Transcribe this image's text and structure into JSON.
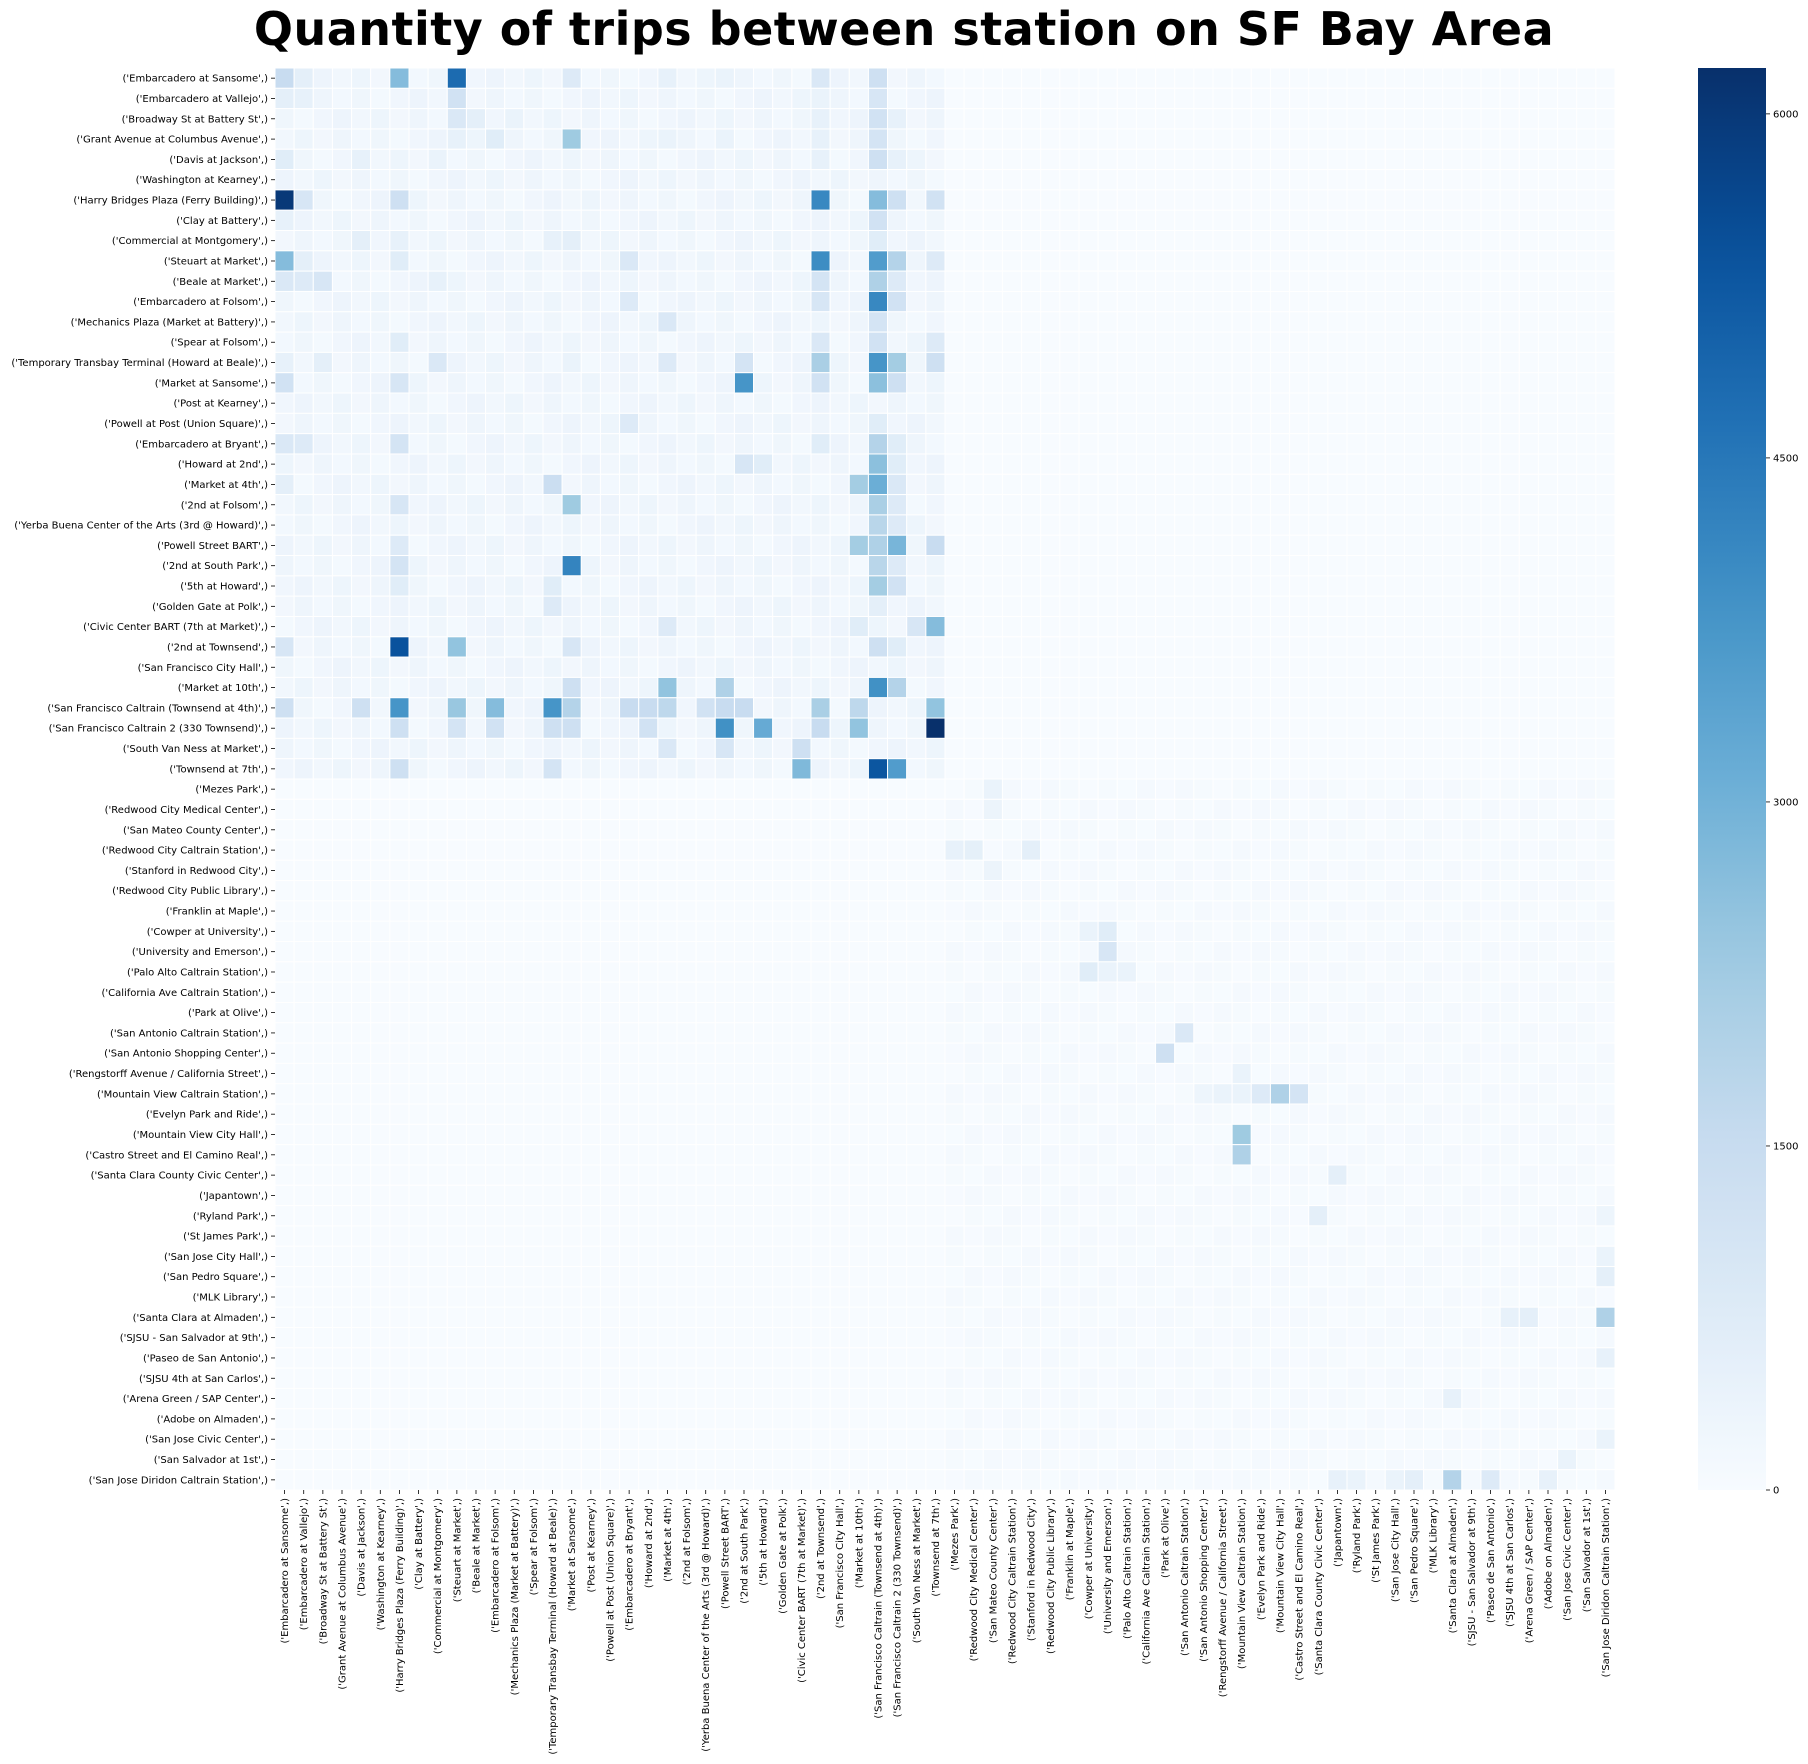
{
  "chart_data": {
    "type": "heatmap",
    "title": "Quantity of trips between station on SF Bay Area",
    "xlabel": "",
    "ylabel": "",
    "colormap": "Blues",
    "color_low": "#f7fbff",
    "color_high": "#08306b",
    "color_range": [
      0,
      6200
    ],
    "colorbar_ticks": [
      "0",
      "1500",
      "3000",
      "4500",
      "6000"
    ],
    "colorbar_tick_values": [
      0,
      1500,
      3000,
      4500,
      6000
    ],
    "row_labels": [
      "('Embarcadero at Sansome',)",
      "('Embarcadero at Vallejo',)",
      "('Broadway St at Battery St',)",
      "('Grant Avenue at Columbus Avenue',)",
      "('Davis at Jackson',)",
      "('Washington at Kearney',)",
      "('Harry Bridges Plaza (Ferry Building)',)",
      "('Clay at Battery',)",
      "('Commercial at Montgomery',)",
      "('Steuart at Market',)",
      "('Beale at Market',)",
      "('Embarcadero at Folsom',)",
      "('Mechanics Plaza (Market at Battery)',)",
      "('Spear at Folsom',)",
      "('Temporary Transbay Terminal (Howard at Beale)',)",
      "('Market at Sansome',)",
      "('Post at Kearney',)",
      "('Powell at Post (Union Square)',)",
      "('Embarcadero at Bryant',)",
      "('Howard at 2nd',)",
      "('Market at 4th',)",
      "('2nd at Folsom',)",
      "('Yerba Buena Center of the Arts (3rd @ Howard)',)",
      "('Powell Street BART',)",
      "('2nd at South Park',)",
      "('5th at Howard',)",
      "('Golden Gate at Polk',)",
      "('Civic Center BART (7th at Market)',)",
      "('2nd at Townsend',)",
      "('San Francisco City Hall',)",
      "('Market at 10th',)",
      "('San Francisco Caltrain (Townsend at 4th)',)",
      "('San Francisco Caltrain 2 (330 Townsend)',)",
      "('South Van Ness at Market',)",
      "('Townsend at 7th',)",
      "('Mezes Park',)",
      "('Redwood City Medical Center',)",
      "('San Mateo County Center',)",
      "('Redwood City Caltrain Station',)",
      "('Stanford in Redwood City',)",
      "('Redwood City Public Library',)",
      "('Franklin at Maple',)",
      "('Cowper at University',)",
      "('University and Emerson',)",
      "('Palo Alto Caltrain Station',)",
      "('California Ave Caltrain Station',)",
      "('Park at Olive',)",
      "('San Antonio Caltrain Station',)",
      "('San Antonio Shopping Center',)",
      "('Rengstorff Avenue / California Street',)",
      "('Mountain View Caltrain Station',)",
      "('Evelyn Park and Ride',)",
      "('Mountain View City Hall',)",
      "('Castro Street and El Camino Real',)",
      "('Santa Clara County Civic Center',)",
      "('Japantown',)",
      "('Ryland Park',)",
      "('St James Park',)",
      "('San Jose City Hall',)",
      "('San Pedro Square',)",
      "('MLK Library',)",
      "('Santa Clara at Almaden',)",
      "('SJSU - San Salvador at 9th',)",
      "('Paseo de San Antonio',)",
      "('SJSU 4th at San Carlos',)",
      "('Arena Green / SAP Center',)",
      "('Adobe on Almaden',)",
      "('San Jose Civic Center',)",
      "('San Salvador at 1st',)",
      "('San Jose Diridon Caltrain Station',)"
    ],
    "col_labels": [
      "('Embarcadero at Sansome',)",
      "('Embarcadero at Vallejo',)",
      "('Broadway St at Battery St',)",
      "('Grant Avenue at Columbus Avenue',)",
      "('Davis at Jackson',)",
      "('Washington at Kearney',)",
      "('Harry Bridges Plaza (Ferry Building)',)",
      "('Clay at Battery',)",
      "('Commercial at Montgomery',)",
      "('Steuart at Market',)",
      "('Beale at Market',)",
      "('Embarcadero at Folsom',)",
      "('Mechanics Plaza (Market at Battery)',)",
      "('Spear at Folsom',)",
      "('Temporary Transbay Terminal (Howard at Beale)',)",
      "('Market at Sansome',)",
      "('Post at Kearney',)",
      "('Powell at Post (Union Square)',)",
      "('Embarcadero at Bryant',)",
      "('Howard at 2nd',)",
      "('Market at 4th',)",
      "('2nd at Folsom',)",
      "('Yerba Buena Center of the Arts (3rd @ Howard)',)",
      "('Powell Street BART',)",
      "('2nd at South Park',)",
      "('5th at Howard',)",
      "('Golden Gate at Polk',)",
      "('Civic Center BART (7th at Market)',)",
      "('2nd at Townsend',)",
      "('San Francisco City Hall',)",
      "('Market at 10th',)",
      "('San Francisco Caltrain (Townsend at 4th)',)",
      "('San Francisco Caltrain 2 (330 Townsend)',)",
      "('South Van Ness at Market',)",
      "('Townsend at 7th',)",
      "('Mezes Park',)",
      "('Redwood City Medical Center',)",
      "('San Mateo County Center',)",
      "('Redwood City Caltrain Station',)",
      "('Stanford in Redwood City',)",
      "('Redwood City Public Library',)",
      "('Franklin at Maple',)",
      "('Cowper at University',)",
      "('University and Emerson',)",
      "('Palo Alto Caltrain Station',)",
      "('California Ave Caltrain Station',)",
      "('Park at Olive',)",
      "('San Antonio Caltrain Station',)",
      "('San Antonio Shopping Center',)",
      "('Rengstorff Avenue / California Street',)",
      "('Mountain View Caltrain Station',)",
      "('Evelyn Park and Ride',)",
      "('Mountain View City Hall',)",
      "('Castro Street and El Camino Real',)",
      "('Santa Clara County Civic Center',)",
      "('Japantown',)",
      "('Ryland Park',)",
      "('St James Park',)",
      "('San Jose City Hall',)",
      "('San Pedro Square',)",
      "('MLK Library',)",
      "('Santa Clara at Almaden',)",
      "('SJSU - San Salvador at 9th',)",
      "('Paseo de San Antonio',)",
      "('SJSU 4th at San Carlos',)",
      "('Arena Green / SAP Center',)",
      "('Adobe on Almaden',)",
      "('San Jose Civic Center',)",
      "('San Salvador at 1st',)",
      "('San Jose Diridon Caltrain Station',)"
    ],
    "sparse_values": [
      [
        0,
        0,
        1500
      ],
      [
        0,
        1,
        600
      ],
      [
        0,
        6,
        2700
      ],
      [
        0,
        9,
        4800
      ],
      [
        0,
        15,
        800
      ],
      [
        0,
        20,
        500
      ],
      [
        0,
        23,
        400
      ],
      [
        0,
        28,
        900
      ],
      [
        0,
        31,
        1300
      ],
      [
        1,
        0,
        600
      ],
      [
        1,
        1,
        500
      ],
      [
        1,
        9,
        1200
      ],
      [
        1,
        28,
        400
      ],
      [
        1,
        31,
        1000
      ],
      [
        2,
        9,
        900
      ],
      [
        2,
        10,
        600
      ],
      [
        2,
        12,
        400
      ],
      [
        2,
        28,
        500
      ],
      [
        2,
        31,
        1200
      ],
      [
        2,
        32,
        500
      ],
      [
        3,
        9,
        500
      ],
      [
        3,
        11,
        700
      ],
      [
        3,
        15,
        2300
      ],
      [
        3,
        20,
        400
      ],
      [
        3,
        23,
        400
      ],
      [
        3,
        28,
        500
      ],
      [
        3,
        31,
        1100
      ],
      [
        4,
        0,
        700
      ],
      [
        4,
        4,
        500
      ],
      [
        4,
        8,
        400
      ],
      [
        4,
        28,
        500
      ],
      [
        4,
        31,
        1300
      ],
      [
        4,
        32,
        500
      ],
      [
        6,
        0,
        6000
      ],
      [
        6,
        1,
        1000
      ],
      [
        6,
        6,
        1300
      ],
      [
        6,
        28,
        4100
      ],
      [
        6,
        31,
        2700
      ],
      [
        6,
        32,
        1300
      ],
      [
        6,
        34,
        1200
      ],
      [
        7,
        0,
        500
      ],
      [
        7,
        31,
        1200
      ],
      [
        8,
        4,
        600
      ],
      [
        8,
        6,
        500
      ],
      [
        8,
        14,
        500
      ],
      [
        8,
        15,
        600
      ],
      [
        8,
        31,
        700
      ],
      [
        9,
        0,
        2700
      ],
      [
        9,
        1,
        600
      ],
      [
        9,
        6,
        700
      ],
      [
        9,
        18,
        900
      ],
      [
        9,
        28,
        4000
      ],
      [
        9,
        31,
        3600
      ],
      [
        9,
        32,
        1900
      ],
      [
        9,
        34,
        800
      ],
      [
        10,
        0,
        900
      ],
      [
        10,
        1,
        800
      ],
      [
        10,
        2,
        1000
      ],
      [
        10,
        8,
        500
      ],
      [
        10,
        28,
        1100
      ],
      [
        10,
        31,
        2000
      ],
      [
        10,
        32,
        800
      ],
      [
        11,
        18,
        800
      ],
      [
        11,
        28,
        1000
      ],
      [
        11,
        31,
        4100
      ],
      [
        11,
        32,
        1200
      ],
      [
        12,
        20,
        900
      ],
      [
        12,
        31,
        1100
      ],
      [
        13,
        6,
        700
      ],
      [
        13,
        28,
        900
      ],
      [
        13,
        31,
        1200
      ],
      [
        13,
        34,
        800
      ],
      [
        14,
        0,
        500
      ],
      [
        14,
        2,
        600
      ],
      [
        14,
        8,
        900
      ],
      [
        14,
        15,
        400
      ],
      [
        14,
        20,
        800
      ],
      [
        14,
        24,
        1100
      ],
      [
        14,
        28,
        2100
      ],
      [
        14,
        31,
        3800
      ],
      [
        14,
        32,
        2200
      ],
      [
        14,
        34,
        1300
      ],
      [
        15,
        0,
        1200
      ],
      [
        15,
        6,
        1000
      ],
      [
        15,
        24,
        3800
      ],
      [
        15,
        28,
        1200
      ],
      [
        15,
        31,
        2600
      ],
      [
        15,
        32,
        1300
      ],
      [
        17,
        18,
        800
      ],
      [
        17,
        31,
        700
      ],
      [
        18,
        0,
        900
      ],
      [
        18,
        1,
        800
      ],
      [
        18,
        6,
        1100
      ],
      [
        18,
        28,
        700
      ],
      [
        18,
        31,
        1900
      ],
      [
        18,
        32,
        700
      ],
      [
        19,
        24,
        1000
      ],
      [
        19,
        25,
        700
      ],
      [
        19,
        31,
        2600
      ],
      [
        19,
        32,
        700
      ],
      [
        20,
        0,
        600
      ],
      [
        20,
        14,
        1400
      ],
      [
        20,
        30,
        2200
      ],
      [
        20,
        31,
        3100
      ],
      [
        20,
        32,
        900
      ],
      [
        21,
        6,
        1000
      ],
      [
        21,
        15,
        2300
      ],
      [
        21,
        31,
        2100
      ],
      [
        21,
        32,
        800
      ],
      [
        22,
        31,
        1800
      ],
      [
        22,
        32,
        800
      ],
      [
        23,
        6,
        800
      ],
      [
        23,
        30,
        2200
      ],
      [
        23,
        31,
        2000
      ],
      [
        23,
        32,
        2900
      ],
      [
        23,
        34,
        1500
      ],
      [
        24,
        6,
        1100
      ],
      [
        24,
        15,
        4200
      ],
      [
        24,
        31,
        1800
      ],
      [
        24,
        32,
        800
      ],
      [
        25,
        6,
        700
      ],
      [
        25,
        14,
        700
      ],
      [
        25,
        31,
        2200
      ],
      [
        25,
        32,
        1200
      ],
      [
        26,
        14,
        800
      ],
      [
        26,
        31,
        600
      ],
      [
        27,
        20,
        800
      ],
      [
        27,
        30,
        700
      ],
      [
        27,
        33,
        1000
      ],
      [
        27,
        34,
        2700
      ],
      [
        28,
        0,
        1000
      ],
      [
        28,
        6,
        5400
      ],
      [
        28,
        9,
        2500
      ],
      [
        28,
        15,
        1000
      ],
      [
        28,
        31,
        1300
      ],
      [
        28,
        32,
        700
      ],
      [
        30,
        15,
        1300
      ],
      [
        30,
        20,
        2500
      ],
      [
        30,
        23,
        2000
      ],
      [
        30,
        31,
        3900
      ],
      [
        30,
        32,
        1900
      ],
      [
        31,
        0,
        1300
      ],
      [
        31,
        4,
        1300
      ],
      [
        31,
        6,
        3800
      ],
      [
        31,
        9,
        2400
      ],
      [
        31,
        11,
        2700
      ],
      [
        31,
        14,
        3800
      ],
      [
        31,
        15,
        1900
      ],
      [
        31,
        18,
        1500
      ],
      [
        31,
        19,
        1500
      ],
      [
        31,
        20,
        1700
      ],
      [
        31,
        22,
        1200
      ],
      [
        31,
        23,
        1500
      ],
      [
        31,
        24,
        1500
      ],
      [
        31,
        28,
        2100
      ],
      [
        31,
        30,
        1700
      ],
      [
        31,
        34,
        2500
      ],
      [
        32,
        6,
        1300
      ],
      [
        32,
        9,
        1100
      ],
      [
        32,
        11,
        1200
      ],
      [
        32,
        14,
        1300
      ],
      [
        32,
        15,
        1300
      ],
      [
        32,
        19,
        1200
      ],
      [
        32,
        23,
        3900
      ],
      [
        32,
        25,
        3200
      ],
      [
        32,
        28,
        1500
      ],
      [
        32,
        30,
        2500
      ],
      [
        32,
        34,
        6200
      ],
      [
        33,
        20,
        900
      ],
      [
        33,
        23,
        1000
      ],
      [
        33,
        27,
        1300
      ],
      [
        34,
        6,
        1300
      ],
      [
        34,
        14,
        1100
      ],
      [
        34,
        27,
        2800
      ],
      [
        34,
        31,
        5300
      ],
      [
        34,
        32,
        3600
      ],
      [
        35,
        37,
        400
      ],
      [
        36,
        37,
        350
      ],
      [
        38,
        35,
        500
      ],
      [
        38,
        36,
        550
      ],
      [
        38,
        39,
        600
      ],
      [
        39,
        37,
        350
      ],
      [
        42,
        42,
        400
      ],
      [
        42,
        43,
        700
      ],
      [
        43,
        43,
        1000
      ],
      [
        44,
        42,
        700
      ],
      [
        44,
        43,
        400
      ],
      [
        44,
        44,
        400
      ],
      [
        47,
        47,
        900
      ],
      [
        48,
        46,
        1300
      ],
      [
        49,
        50,
        400
      ],
      [
        50,
        48,
        300
      ],
      [
        50,
        49,
        400
      ],
      [
        50,
        50,
        400
      ],
      [
        50,
        51,
        800
      ],
      [
        50,
        52,
        2000
      ],
      [
        50,
        53,
        1100
      ],
      [
        52,
        50,
        2300
      ],
      [
        53,
        50,
        2000
      ],
      [
        54,
        55,
        600
      ],
      [
        56,
        54,
        600
      ],
      [
        56,
        69,
        300
      ],
      [
        58,
        69,
        400
      ],
      [
        59,
        69,
        600
      ],
      [
        61,
        64,
        500
      ],
      [
        61,
        65,
        600
      ],
      [
        61,
        69,
        2000
      ],
      [
        63,
        69,
        500
      ],
      [
        65,
        61,
        500
      ],
      [
        67,
        69,
        400
      ],
      [
        68,
        67,
        400
      ],
      [
        69,
        55,
        500
      ],
      [
        69,
        56,
        400
      ],
      [
        69,
        58,
        400
      ],
      [
        69,
        59,
        600
      ],
      [
        69,
        61,
        1900
      ],
      [
        69,
        63,
        800
      ],
      [
        69,
        66,
        500
      ]
    ]
  }
}
